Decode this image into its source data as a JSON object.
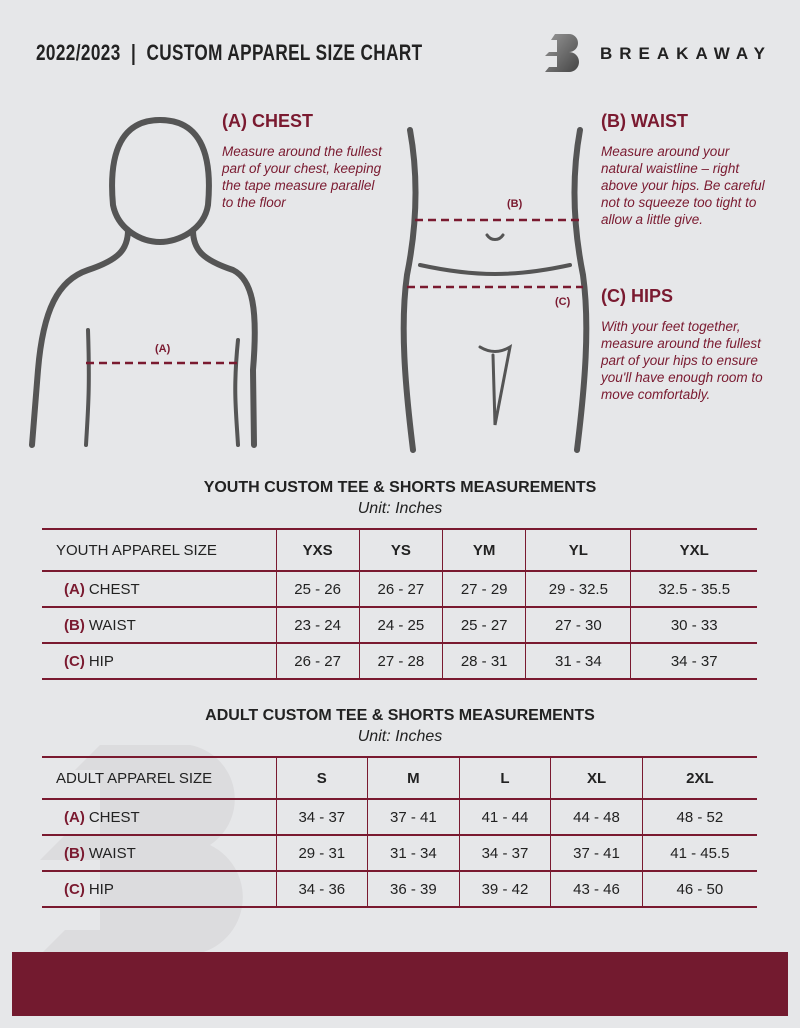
{
  "header": {
    "title": "2022/2023  |  CUSTOM APPAREL SIZE CHART",
    "brand": "BREAKAWAY"
  },
  "measures": {
    "chest": {
      "heading": "(A) CHEST",
      "desc": "Measure around the fullest part of your chest, keeping the tape measure parallel to the floor",
      "marker": "(A)"
    },
    "waist": {
      "heading": "(B) WAIST",
      "desc": "Measure around your natural waistline – right above your hips. Be careful not to squeeze too tight to allow a little give.",
      "marker": "(B)"
    },
    "hips": {
      "heading": "(C) HIPS",
      "desc": "With your feet together, measure around the fullest part of your hips to ensure you'll have enough room to move comfortably.",
      "marker": "(C)"
    }
  },
  "youth": {
    "title": "YOUTH CUSTOM TEE & SHORTS MEASUREMENTS",
    "unit": "Unit: Inches",
    "header": "YOUTH APPAREL SIZE",
    "sizes": [
      "YXS",
      "YS",
      "YM",
      "YL",
      "YXL"
    ],
    "rows": [
      {
        "tag": "(A)",
        "label": "CHEST",
        "values": [
          "25 - 26",
          "26 - 27",
          "27 - 29",
          "29 - 32.5",
          "32.5 - 35.5"
        ]
      },
      {
        "tag": "(B)",
        "label": "WAIST",
        "values": [
          "23 - 24",
          "24 - 25",
          "25 - 27",
          "27 - 30",
          "30 - 33"
        ]
      },
      {
        "tag": "(C)",
        "label": "HIP",
        "values": [
          "26 - 27",
          "27 - 28",
          "28 - 31",
          "31 - 34",
          "34 - 37"
        ]
      }
    ]
  },
  "adult": {
    "title": "ADULT CUSTOM TEE & SHORTS MEASUREMENTS",
    "unit": "Unit: Inches",
    "header": "ADULT APPAREL SIZE",
    "sizes": [
      "S",
      "M",
      "L",
      "XL",
      "2XL"
    ],
    "rows": [
      {
        "tag": "(A)",
        "label": "CHEST",
        "values": [
          "34 - 37",
          "37 - 41",
          "41 - 44",
          "44 - 48",
          "48 - 52"
        ]
      },
      {
        "tag": "(B)",
        "label": "WAIST",
        "values": [
          "29 - 31",
          "31 - 34",
          "34 - 37",
          "37 - 41",
          "41 - 45.5"
        ]
      },
      {
        "tag": "(C)",
        "label": "HIP",
        "values": [
          "34 - 36",
          "36 - 39",
          "39 - 42",
          "43 - 46",
          "46 - 50"
        ]
      }
    ]
  },
  "colors": {
    "accent": "#7a1a30",
    "background": "#e6e7e9"
  }
}
